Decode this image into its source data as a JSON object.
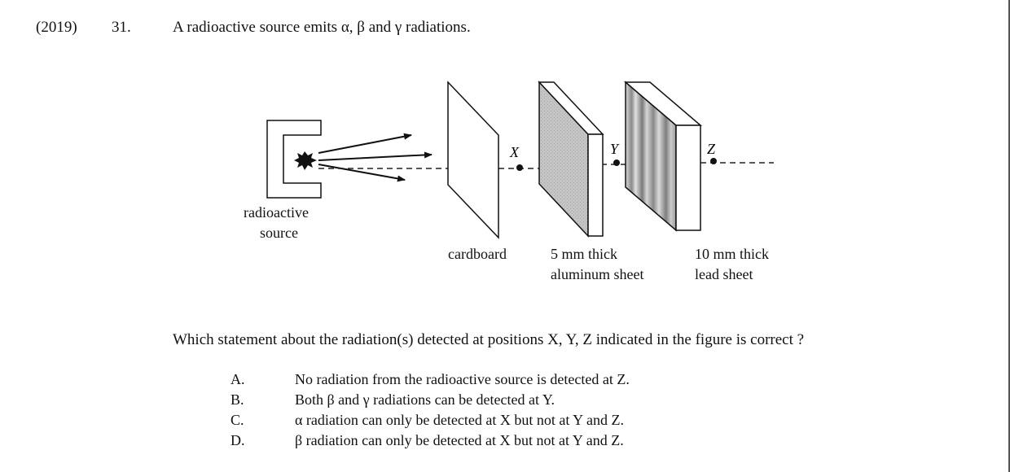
{
  "header": {
    "year": "(2019)",
    "number": "31.",
    "question": "A radioactive source emits α, β and γ radiations."
  },
  "figure": {
    "source_label_line1": "radioactive",
    "source_label_line2": "source",
    "cardboard_label": "cardboard",
    "aluminum_label_line1": "5 mm thick",
    "aluminum_label_line2": "aluminum sheet",
    "lead_label_line1": "10 mm thick",
    "lead_label_line2": "lead sheet",
    "point_x": "X",
    "point_y": "Y",
    "point_z": "Z"
  },
  "prompt": "Which statement about the radiation(s) detected at positions X, Y, Z indicated in the figure is correct ?",
  "options": [
    {
      "letter": "A.",
      "text": "No radiation from the radioactive source is detected at Z."
    },
    {
      "letter": "B.",
      "text": "Both β and γ radiations can be detected at Y."
    },
    {
      "letter": "C.",
      "text": "α radiation can only be detected at X but not at Y and Z."
    },
    {
      "letter": "D.",
      "text": "β radiation can only be detected at X but not at Y and Z."
    }
  ]
}
